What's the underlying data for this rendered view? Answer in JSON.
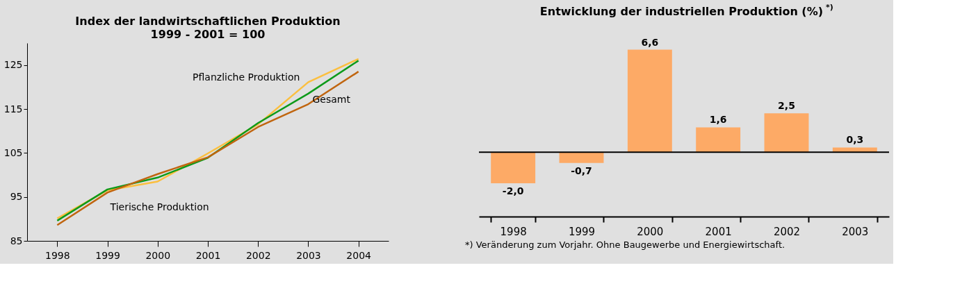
{
  "chart_data": [
    {
      "type": "line",
      "title": "Index der landwirtschaftlichen Produktion",
      "subtitle": "1999 - 2001 = 100",
      "x": [
        1998,
        1999,
        2000,
        2001,
        2002,
        2003,
        2004
      ],
      "series": [
        {
          "name": "Pflanzliche Produktion",
          "color": "#fbbf3f",
          "values": [
            90.1,
            96.5,
            98.5,
            104.9,
            111.5,
            121.1,
            126.4
          ]
        },
        {
          "name": "Gesamt",
          "color": "#0d9a1a",
          "values": [
            89.6,
            96.7,
            99.4,
            103.9,
            111.8,
            118.5,
            126.0
          ]
        },
        {
          "name": "Tierische Produktion",
          "color": "#c0650f",
          "values": [
            88.6,
            96.0,
            100.2,
            104.0,
            110.9,
            116.1,
            123.5
          ]
        }
      ],
      "xlim": [
        1997.4,
        2004.6
      ],
      "xticks": [
        1998,
        1999,
        2000,
        2001,
        2002,
        2003,
        2004
      ],
      "ylim": [
        85,
        130
      ],
      "yticks": [
        85,
        95,
        105,
        115,
        125
      ],
      "grid": false,
      "legend": false
    },
    {
      "type": "bar",
      "title": "Entwicklung der industriellen Produktion (%) $^{*)}$",
      "categories": [
        "1998",
        "1999",
        "2000",
        "2001",
        "2002",
        "2003"
      ],
      "values": [
        -2.0,
        -0.7,
        6.6,
        1.6,
        2.5,
        0.3
      ],
      "color": "#fdaa66",
      "tick_labels": "x",
      "value_labels": [
        "-2,0",
        "-0,7",
        "6,6",
        "1,6",
        "2,5",
        "0,3"
      ],
      "annotations": [
        "*) Veränderung zum Vorjahr. Ohne Baugewerbe und Energiewirtschaft."
      ],
      "grid": false,
      "legend": false
    }
  ]
}
